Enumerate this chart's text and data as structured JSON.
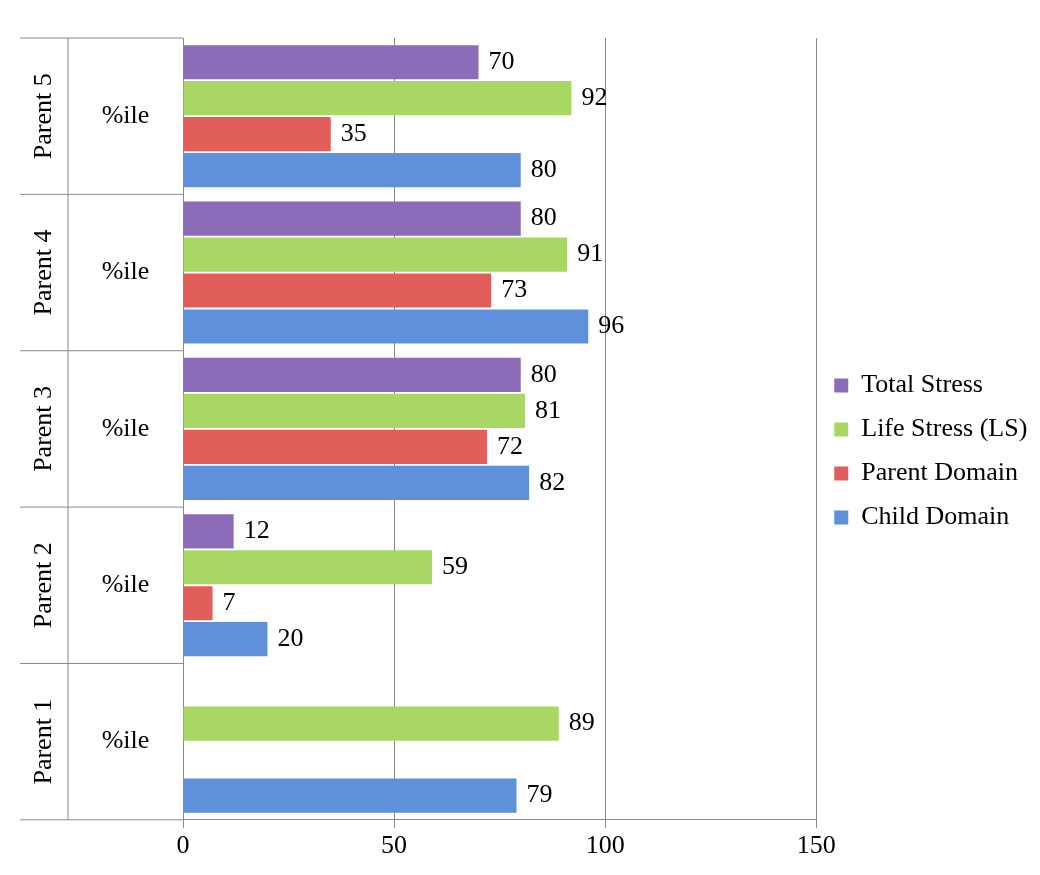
{
  "chart_data": {
    "type": "bar",
    "orientation": "horizontal",
    "categories": [
      "%ile",
      "%ile",
      "%ile",
      "%ile",
      "%ile"
    ],
    "annotations": [
      "Parent 5",
      "Parent 4",
      "Parent 3",
      "Parent 2",
      "Parent 1"
    ],
    "series": [
      {
        "name": "Total Stress",
        "color": "#8c6bb8",
        "values": [
          70,
          80,
          80,
          12,
          null
        ]
      },
      {
        "name": "Life Stress (LS)",
        "color": "#a8d863",
        "values": [
          92,
          91,
          81,
          59,
          89
        ]
      },
      {
        "name": "Parent Domain",
        "color": "#e25e5b",
        "values": [
          35,
          73,
          72,
          7,
          null
        ]
      },
      {
        "name": "Child Domain",
        "color": "#5e90dc",
        "values": [
          80,
          96,
          82,
          20,
          79
        ]
      }
    ],
    "xlim": [
      0,
      150
    ],
    "xticks": [
      0,
      50,
      100,
      150
    ],
    "grid": "x",
    "legend": "right",
    "data_labels": true
  }
}
